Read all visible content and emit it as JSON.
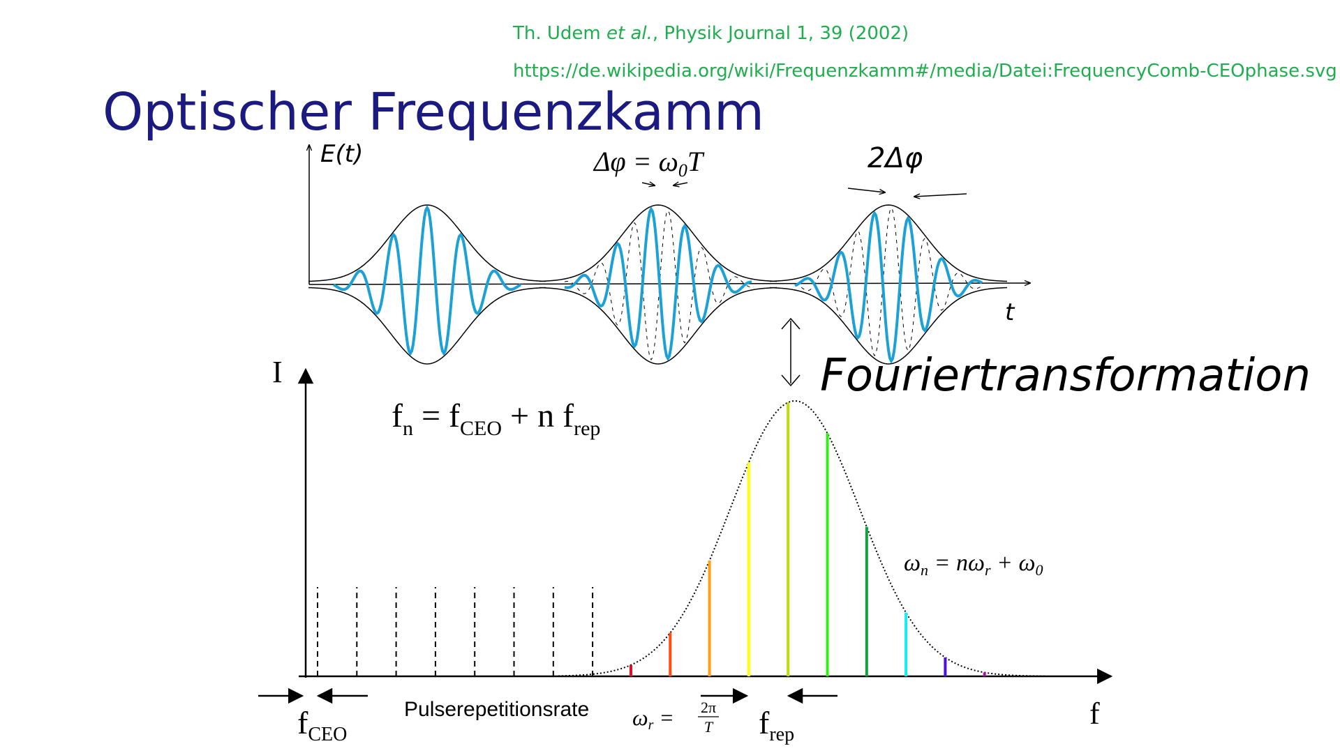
{
  "references": [
    {
      "before": "Th. Udem ",
      "italic": "et al.",
      "after": ", Physik Journal 1, 39 (2002)"
    },
    "https://de.wikipedia.org/wiki/Frequenzkamm#/media/Datei:FrequencyComb-CEOphase.svg"
  ],
  "title": "Optischer Frequenzkamm",
  "time_domain": {
    "y_label": "E(t)",
    "x_label": "t",
    "phase_1": {
      "lhs": "Δφ = ω",
      "sub": "0",
      "rhs": "T"
    },
    "phase_2": "2Δφ",
    "transform": "Fouriertransformation"
  },
  "frequency_domain": {
    "y_label": "I",
    "x_label": "f",
    "comb_formula": {
      "f": "f",
      "n": "n",
      "eq": " = f",
      "ceo": "CEO",
      "plus": " + n f",
      "rep": "rep"
    },
    "omega_formula": {
      "w": "ω",
      "n": "n",
      "eq": " = nω",
      "r": "r",
      "plus": " + ω",
      "zero": "0"
    },
    "f_ceo": {
      "f": "f",
      "sub": "CEO"
    },
    "rate_label": "Pulserepetitionsrate",
    "omega_r": {
      "w": "ω",
      "r": "r",
      "eq": " = ",
      "num": "2π",
      "den": "T"
    },
    "f_rep": {
      "f": "f",
      "sub": "rep"
    }
  }
}
